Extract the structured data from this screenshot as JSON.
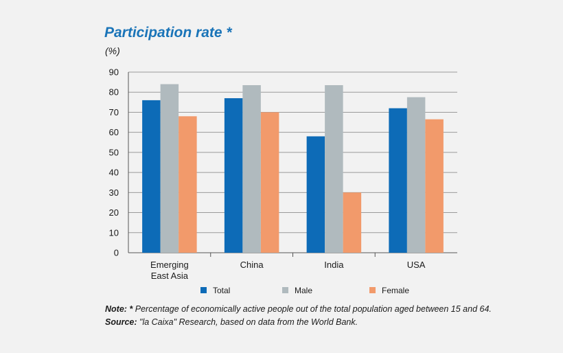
{
  "chart_data": {
    "type": "bar",
    "title": "Participation rate *",
    "ylabel": "(%)",
    "xlabel": "",
    "ylim": [
      0,
      90
    ],
    "yticks": [
      0,
      10,
      20,
      30,
      40,
      50,
      60,
      70,
      80,
      90
    ],
    "grid": true,
    "categories": [
      [
        "Emerging",
        "East Asia"
      ],
      [
        "China"
      ],
      [
        "India"
      ],
      [
        "USA"
      ]
    ],
    "series": [
      {
        "name": "Total",
        "color": "#0d6bb7",
        "values": [
          76,
          77,
          58,
          72
        ]
      },
      {
        "name": "Male",
        "color": "#b0babe",
        "values": [
          84,
          83.5,
          83.5,
          77.5
        ]
      },
      {
        "name": "Female",
        "color": "#f29a6b",
        "values": [
          68,
          70,
          30,
          66.5
        ]
      }
    ],
    "legend_position": "bottom"
  },
  "notes": {
    "note_label": "Note: *",
    "note_text": " Percentage of economically active people out of the total population aged between 15 and 64.",
    "source_label": "Source:",
    "source_text": " \"la Caixa\" Research, based on data from the World Bank."
  }
}
